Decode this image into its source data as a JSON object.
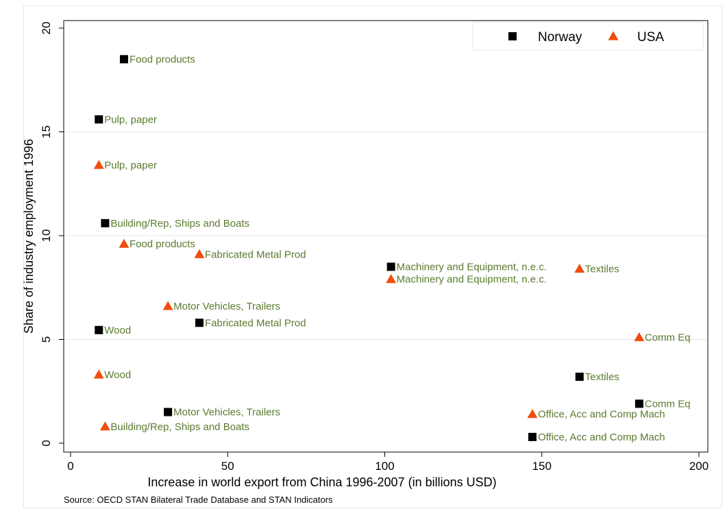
{
  "chart_data": {
    "type": "scatter",
    "xlabel": "Increase in world export from China 1996-2007 (in billions USD)",
    "ylabel": "Share of industry employment 1996",
    "note": "Source: OECD STAN Bilateral Trade Database and STAN Indicators",
    "xlim": [
      0,
      200
    ],
    "ylim": [
      0,
      20
    ],
    "xticks": [
      0,
      50,
      100,
      150,
      200
    ],
    "yticks": [
      0,
      5,
      10,
      15,
      20
    ],
    "grid": "horizontal",
    "legend_position": "top-right",
    "label_color": "#5a7a2e",
    "series": [
      {
        "name": "Norway",
        "marker": "square",
        "color": "#000000",
        "points": [
          {
            "x": 17,
            "y": 18.5,
            "label": "Food products"
          },
          {
            "x": 9,
            "y": 15.6,
            "label": "Pulp, paper"
          },
          {
            "x": 11,
            "y": 10.6,
            "label": "Building/Rep, Ships and Boats"
          },
          {
            "x": 102,
            "y": 8.5,
            "label": "Machinery and Equipment, n.e.c."
          },
          {
            "x": 41,
            "y": 5.8,
            "label": "Fabricated Metal Prod"
          },
          {
            "x": 9,
            "y": 5.45,
            "label": "Wood"
          },
          {
            "x": 162,
            "y": 3.2,
            "label": "Textiles"
          },
          {
            "x": 181,
            "y": 1.9,
            "label": "Comm Eq"
          },
          {
            "x": 31,
            "y": 1.5,
            "label": "Motor Vehicles, Trailers"
          },
          {
            "x": 147,
            "y": 0.3,
            "label": "Office, Acc and Comp Mach"
          }
        ]
      },
      {
        "name": "USA",
        "marker": "triangle",
        "color": "#f04e0e",
        "points": [
          {
            "x": 9,
            "y": 13.4,
            "label": "Pulp, paper"
          },
          {
            "x": 17,
            "y": 9.6,
            "label": "Food products"
          },
          {
            "x": 41,
            "y": 9.1,
            "label": "Fabricated Metal Prod"
          },
          {
            "x": 162,
            "y": 8.4,
            "label": "Textiles"
          },
          {
            "x": 102,
            "y": 7.9,
            "label": "Machinery and Equipment, n.e.c."
          },
          {
            "x": 31,
            "y": 6.6,
            "label": "Motor Vehicles, Trailers"
          },
          {
            "x": 181,
            "y": 5.1,
            "label": "Comm Eq"
          },
          {
            "x": 9,
            "y": 3.3,
            "label": "Wood"
          },
          {
            "x": 147,
            "y": 1.4,
            "label": "Office, Acc and Comp Mach"
          },
          {
            "x": 11,
            "y": 0.8,
            "label": "Building/Rep, Ships and Boats"
          }
        ]
      }
    ]
  }
}
